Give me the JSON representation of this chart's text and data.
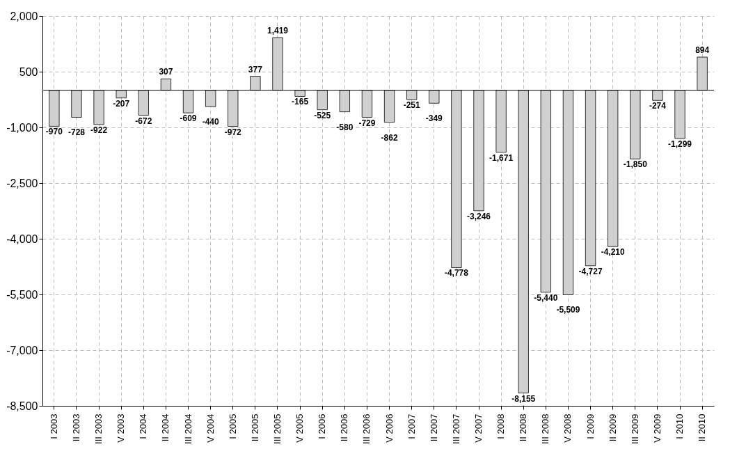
{
  "chart_data": {
    "type": "bar",
    "categories": [
      "I 2003",
      "II 2003",
      "III 2003",
      "V 2003",
      "I 2004",
      "II 2004",
      "III 2004",
      "V 2004",
      "I 2005",
      "II 2005",
      "III 2005",
      "V 2005",
      "I 2006",
      "II 2006",
      "III 2006",
      "V 2006",
      "I 2007",
      "II 2007",
      "III 2007",
      "V 2007",
      "I 2008",
      "II 2008",
      "III 2008",
      "V 2008",
      "I 2009",
      "II 2009",
      "III 2009",
      "V 2009",
      "I 2010",
      "II 2010"
    ],
    "values": [
      -970,
      -728,
      -922,
      -207,
      -672,
      307,
      -609,
      -440,
      -972,
      377,
      1419,
      -165,
      -525,
      -580,
      -729,
      -862,
      -251,
      -349,
      -4778,
      -3246,
      -1671,
      -8155,
      -5440,
      -5509,
      -4727,
      -4210,
      -1850,
      -274,
      -1299,
      894
    ],
    "value_labels": [
      "-970",
      "-728",
      "-922",
      "-207",
      "-672",
      "307",
      "-609",
      "-440",
      "-972",
      "377",
      "1,419",
      "-165",
      "-525",
      "-580",
      "-729",
      "-862",
      "-251",
      "-349",
      "-4,778",
      "-3,246",
      "-1,671",
      "-8,155",
      "-5,440",
      "-5,509",
      "-4,727",
      "-4,210",
      "-1,850",
      "-274",
      "-1,299",
      "894"
    ],
    "color": "#d0d0d0",
    "ylim": [
      -8500,
      2000
    ],
    "yticks": [
      {
        "value": -8500,
        "label": "-8,500"
      },
      {
        "value": -7000,
        "label": "-7,000"
      },
      {
        "value": -5500,
        "label": "-5,500"
      },
      {
        "value": -4000,
        "label": "-4,000"
      },
      {
        "value": -2500,
        "label": "-2,500"
      },
      {
        "value": -1000,
        "label": "-1,000"
      },
      {
        "value": 500,
        "label": "500"
      },
      {
        "value": 2000,
        "label": "2,000"
      }
    ],
    "grid": true
  }
}
